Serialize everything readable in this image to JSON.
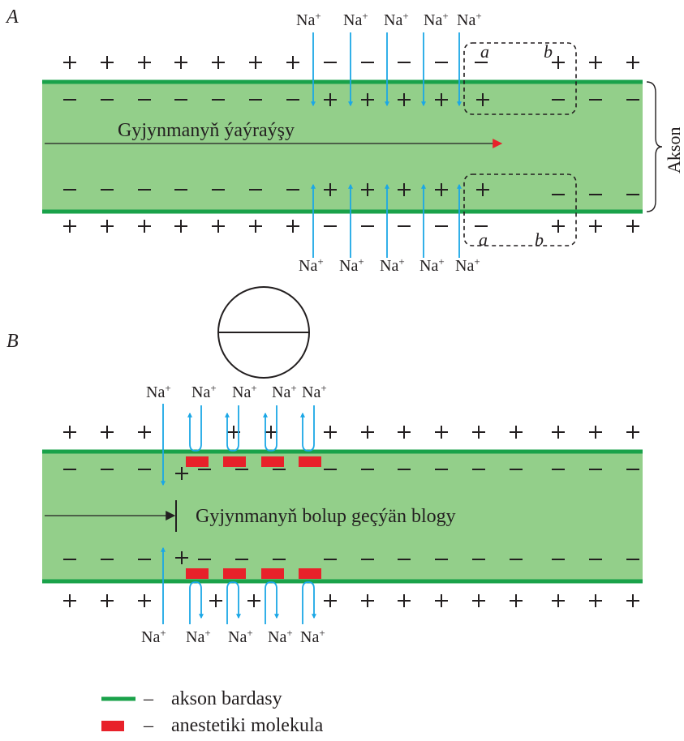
{
  "panel_a": {
    "label": "A",
    "na_label": "Na",
    "na_superscript": "+",
    "propagation_label": "Gyjynmanyň ýaýraýşy",
    "axon_label": "Akson",
    "region_a": "a",
    "region_b": "b"
  },
  "panel_b": {
    "label": "B",
    "na_label": "Na",
    "na_superscript": "+",
    "block_label": "Gyjynmanyň bolup geçýän blogy"
  },
  "legend": {
    "dash": "–",
    "membrane_label": "akson bardasy",
    "anesthetic_label": "anestetiki molekula"
  },
  "colors": {
    "axon_fill": "#93cf8a",
    "membrane": "#1aa24a",
    "ion_arrow": "#1ba7e6",
    "anesthetic": "#e8212a",
    "propagation_arrowhead": "#e8212a",
    "ink": "#231f20"
  }
}
